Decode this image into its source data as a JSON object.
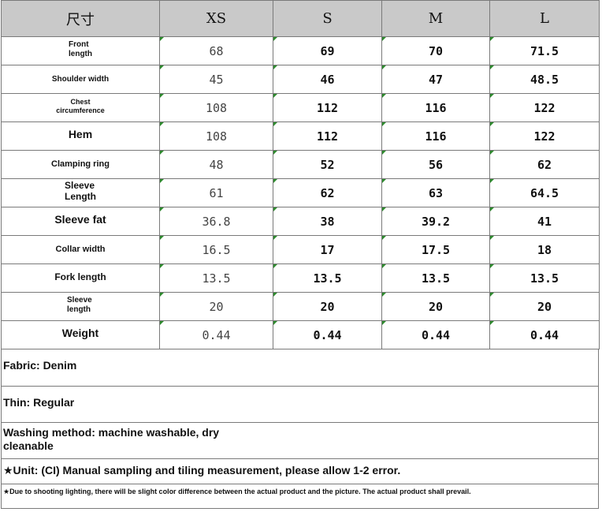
{
  "table": {
    "headers": [
      "尺寸",
      "XS",
      "S",
      "M",
      "L"
    ],
    "rows": [
      {
        "label": "Front length",
        "values": [
          "68",
          "69",
          "70",
          "71.5"
        ]
      },
      {
        "label": "Shoulder width",
        "values": [
          "45",
          "46",
          "47",
          "48.5"
        ]
      },
      {
        "label": "Chest circumference",
        "values": [
          "108",
          "112",
          "116",
          "122"
        ]
      },
      {
        "label": "Hem",
        "values": [
          "108",
          "112",
          "116",
          "122"
        ]
      },
      {
        "label": "Clamping ring",
        "values": [
          "48",
          "52",
          "56",
          "62"
        ]
      },
      {
        "label": "Sleeve Length",
        "values": [
          "61",
          "62",
          "63",
          "64.5"
        ]
      },
      {
        "label": "Sleeve fat",
        "values": [
          "36.8",
          "38",
          "39.2",
          "41"
        ]
      },
      {
        "label": "Collar width",
        "values": [
          "16.5",
          "17",
          "17.5",
          "18"
        ]
      },
      {
        "label": "Fork length",
        "values": [
          "13.5",
          "13.5",
          "13.5",
          "13.5"
        ]
      },
      {
        "label": "Sleeve length",
        "values": [
          "20",
          "20",
          "20",
          "20"
        ]
      },
      {
        "label": "Weight",
        "values": [
          "0.44",
          "0.44",
          "0.44",
          "0.44"
        ]
      }
    ]
  },
  "info": {
    "fabric": "Fabric: Denim",
    "thin": "Thin: Regular",
    "washing": "Washing method: machine washable, dry cleanable",
    "unit": "★Unit: (CI) Manual sampling and tiling measurement, please allow 1-2 error.",
    "disclaimer": "★Due to shooting lighting, there will be slight color difference between the actual product and the picture. The actual product shall prevail."
  },
  "colors": {
    "header_bg": "#c9c9c9",
    "grid_line": "#7a7a7a",
    "corner_mark": "#2e8b2e"
  }
}
